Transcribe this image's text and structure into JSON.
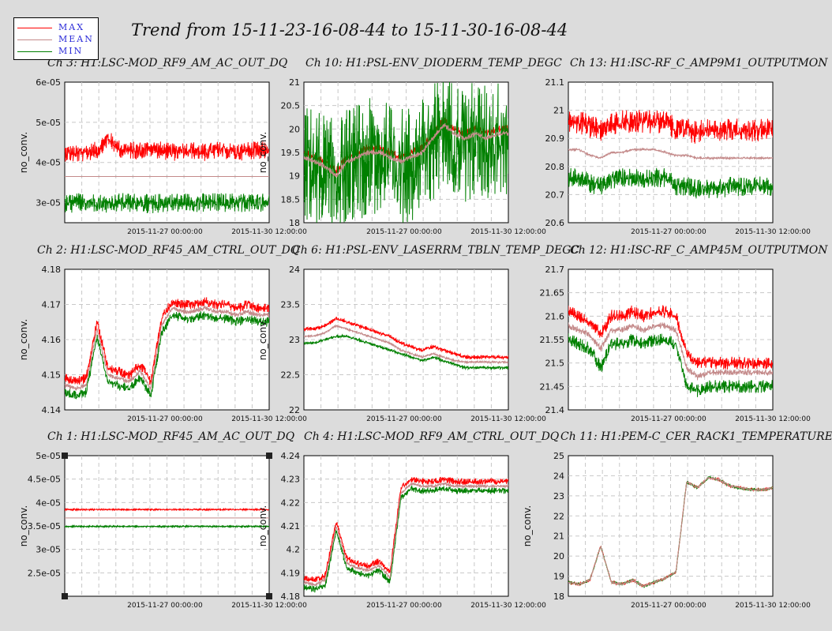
{
  "title": "Trend from 15-11-23-16-08-44 to 15-11-30-16-08-44",
  "legend": [
    {
      "label": "MAX",
      "color": "#ff0000"
    },
    {
      "label": "MEAN",
      "color": "#c48a8a"
    },
    {
      "label": "MIN",
      "color": "#008000"
    }
  ],
  "colors": {
    "max": "#ff0000",
    "mean": "#c48a8a",
    "min": "#008000",
    "grid": "#c8c8c8",
    "background": "#dcdcdc"
  },
  "chart_data": [
    {
      "type": "line",
      "title": "Ch 3: H1:LSC-MOD_RF9_AM_AC_OUT_DQ",
      "ylabel": "no_conv.",
      "yticks": [
        "6e-05",
        "5e-05",
        "4e-05",
        "3e-05"
      ],
      "ylim": [
        2.5e-05,
        6e-05
      ],
      "xticks": [
        "2015-11-27 00:00:00",
        "2015-11-30 12:00:00"
      ],
      "series": [
        {
          "name": "MAX",
          "values": [
            4.25e-05,
            4.2e-05,
            4.25e-05,
            4.3e-05,
            4.6e-05,
            4.35e-05,
            4.3e-05,
            4.3e-05,
            4.35e-05,
            4.3e-05,
            4.25e-05,
            4.3e-05,
            4.3e-05,
            4.25e-05,
            4.3e-05,
            4.3e-05,
            4.25e-05,
            4.3e-05,
            4.3e-05,
            4.3e-05
          ],
          "band": 3.2e-06
        },
        {
          "name": "MEAN",
          "values": [
            3.65e-05,
            3.65e-05,
            3.65e-05,
            3.65e-05,
            3.65e-05,
            3.65e-05,
            3.65e-05,
            3.65e-05,
            3.65e-05,
            3.65e-05,
            3.65e-05,
            3.65e-05,
            3.65e-05,
            3.65e-05,
            3.65e-05,
            3.65e-05,
            3.65e-05,
            3.65e-05,
            3.65e-05,
            3.65e-05
          ],
          "band": 0
        },
        {
          "name": "MIN",
          "values": [
            2.95e-05,
            3e-05,
            3e-05,
            3e-05,
            2.95e-05,
            3e-05,
            3e-05,
            3e-05,
            2.95e-05,
            3e-05,
            3e-05,
            3e-05,
            3e-05,
            3e-05,
            3e-05,
            3e-05,
            3e-05,
            3e-05,
            3e-05,
            3e-05
          ],
          "band": 3.5e-06
        }
      ]
    },
    {
      "type": "line",
      "title": "Ch 10: H1:PSL-ENV_DIODERM_TEMP_DEGC",
      "ylabel": "no_conv.",
      "yticks": [
        "21",
        "20.5",
        "20",
        "19.5",
        "19",
        "18.5",
        "18"
      ],
      "ylim": [
        18,
        21
      ],
      "xticks": [
        "2015-11-27 00:00:00",
        "2015-11-30 12:00:00"
      ],
      "series": [
        {
          "name": "MAX",
          "values": [
            19.5,
            19.4,
            19.3,
            19.1,
            19.4,
            19.5,
            19.6,
            19.6,
            19.5,
            19.4,
            19.5,
            19.6,
            19.9,
            20.2,
            20.0,
            19.9,
            20.0,
            19.9,
            20.0,
            20.0
          ],
          "band": 0.12
        },
        {
          "name": "MEAN",
          "values": [
            19.4,
            19.3,
            19.2,
            19.0,
            19.3,
            19.4,
            19.5,
            19.5,
            19.4,
            19.3,
            19.4,
            19.5,
            19.8,
            20.1,
            19.9,
            19.8,
            19.9,
            19.8,
            19.9,
            19.9
          ],
          "band": 0.08
        },
        {
          "name": "MIN",
          "values": [
            19.3,
            19.2,
            19.1,
            18.9,
            19.2,
            19.3,
            19.4,
            19.4,
            19.3,
            19.2,
            19.3,
            19.4,
            19.7,
            20.0,
            19.8,
            19.7,
            19.8,
            19.7,
            19.8,
            19.8
          ],
          "band": 1.8
        }
      ]
    },
    {
      "type": "line",
      "title": "Ch 13: H1:ISC-RF_C_AMP9M1_OUTPUTMON",
      "ylabel": "",
      "yticks": [
        "21.1",
        "21",
        "20.9",
        "20.8",
        "20.7",
        "20.6"
      ],
      "ylim": [
        20.6,
        21.1
      ],
      "xticks": [
        "2015-11-27 00:00:00",
        "2015-11-30 12:00:00"
      ],
      "series": [
        {
          "name": "MAX",
          "values": [
            20.96,
            20.96,
            20.94,
            20.93,
            20.95,
            20.96,
            20.96,
            20.96,
            20.96,
            20.96,
            20.93,
            20.93,
            20.92,
            20.93,
            20.93,
            20.93,
            20.93,
            20.93,
            20.93,
            20.93
          ],
          "band": 0.06
        },
        {
          "name": "MEAN",
          "values": [
            20.86,
            20.86,
            20.84,
            20.83,
            20.85,
            20.85,
            20.86,
            20.86,
            20.86,
            20.85,
            20.84,
            20.84,
            20.83,
            20.83,
            20.83,
            20.83,
            20.83,
            20.83,
            20.83,
            20.83
          ],
          "band": 0.005
        },
        {
          "name": "MIN",
          "values": [
            20.76,
            20.76,
            20.74,
            20.73,
            20.75,
            20.76,
            20.76,
            20.76,
            20.76,
            20.76,
            20.73,
            20.73,
            20.72,
            20.72,
            20.72,
            20.73,
            20.73,
            20.73,
            20.73,
            20.73
          ],
          "band": 0.05
        }
      ]
    },
    {
      "type": "line",
      "title": "Ch 2: H1:LSC-MOD_RF45_AM_CTRL_OUT_DQ",
      "ylabel": "no_conv.",
      "yticks": [
        "4.18",
        "4.17",
        "4.16",
        "4.15",
        "4.14"
      ],
      "ylim": [
        4.14,
        4.18
      ],
      "xticks": [
        "2015-11-27 00:00:00",
        "2015-11-30 12:00:00"
      ],
      "series": [
        {
          "name": "MAX",
          "values": [
            4.149,
            4.148,
            4.149,
            4.165,
            4.152,
            4.151,
            4.15,
            4.153,
            4.148,
            4.166,
            4.171,
            4.17,
            4.17,
            4.171,
            4.17,
            4.17,
            4.169,
            4.17,
            4.169,
            4.169
          ],
          "band": 0.002
        },
        {
          "name": "MEAN",
          "values": [
            4.147,
            4.146,
            4.147,
            4.163,
            4.15,
            4.149,
            4.148,
            4.151,
            4.146,
            4.164,
            4.169,
            4.168,
            4.168,
            4.169,
            4.168,
            4.168,
            4.167,
            4.168,
            4.167,
            4.167
          ],
          "band": 0.001
        },
        {
          "name": "MIN",
          "values": [
            4.145,
            4.144,
            4.145,
            4.161,
            4.148,
            4.147,
            4.146,
            4.149,
            4.144,
            4.162,
            4.167,
            4.166,
            4.166,
            4.167,
            4.166,
            4.166,
            4.165,
            4.166,
            4.165,
            4.165
          ],
          "band": 0.002
        }
      ]
    },
    {
      "type": "line",
      "title": "Ch 6: H1:PSL-ENV_LASERRM_TBLN_TEMP_DEGC",
      "ylabel": "no_conv.",
      "yticks": [
        "24",
        "23.5",
        "23",
        "22.5",
        "22"
      ],
      "ylim": [
        22,
        24
      ],
      "xticks": [
        "2015-11-27 00:00:00",
        "2015-11-30 12:00:00"
      ],
      "series": [
        {
          "name": "MAX",
          "values": [
            23.15,
            23.15,
            23.2,
            23.3,
            23.25,
            23.2,
            23.15,
            23.1,
            23.05,
            22.95,
            22.9,
            22.85,
            22.9,
            22.85,
            22.8,
            22.75,
            22.75,
            22.75,
            22.75,
            22.75
          ],
          "band": 0.04
        },
        {
          "name": "MEAN",
          "values": [
            23.05,
            23.05,
            23.1,
            23.2,
            23.15,
            23.1,
            23.05,
            23.0,
            22.95,
            22.85,
            22.8,
            22.75,
            22.8,
            22.75,
            22.7,
            22.68,
            22.68,
            22.68,
            22.68,
            22.68
          ],
          "band": 0.02
        },
        {
          "name": "MIN",
          "values": [
            22.95,
            22.95,
            23.0,
            23.05,
            23.05,
            23.0,
            22.95,
            22.9,
            22.85,
            22.8,
            22.75,
            22.7,
            22.75,
            22.7,
            22.65,
            22.6,
            22.6,
            22.6,
            22.6,
            22.6
          ],
          "band": 0.03
        }
      ]
    },
    {
      "type": "line",
      "title": "Ch 12: H1:ISC-RF_C_AMP45M_OUTPUTMON",
      "ylabel": "",
      "yticks": [
        "21.7",
        "21.65",
        "21.6",
        "21.55",
        "21.5",
        "21.45",
        "21.4"
      ],
      "ylim": [
        21.4,
        21.7
      ],
      "xticks": [
        "2015-11-27 00:00:00",
        "2015-11-30 12:00:00"
      ],
      "series": [
        {
          "name": "MAX",
          "values": [
            21.61,
            21.6,
            21.59,
            21.56,
            21.6,
            21.6,
            21.61,
            21.6,
            21.61,
            21.61,
            21.6,
            21.52,
            21.5,
            21.5,
            21.5,
            21.5,
            21.5,
            21.5,
            21.5,
            21.5
          ],
          "band": 0.02
        },
        {
          "name": "MEAN",
          "values": [
            21.58,
            21.57,
            21.56,
            21.53,
            21.57,
            21.57,
            21.58,
            21.57,
            21.58,
            21.58,
            21.57,
            21.49,
            21.47,
            21.48,
            21.48,
            21.48,
            21.48,
            21.48,
            21.48,
            21.48
          ],
          "band": 0.01
        },
        {
          "name": "MIN",
          "values": [
            21.55,
            21.54,
            21.53,
            21.49,
            21.54,
            21.54,
            21.55,
            21.54,
            21.55,
            21.55,
            21.54,
            21.45,
            21.44,
            21.45,
            21.45,
            21.45,
            21.45,
            21.45,
            21.45,
            21.45
          ],
          "band": 0.02
        }
      ]
    },
    {
      "type": "line",
      "title": "Ch 1: H1:LSC-MOD_RF45_AM_AC_OUT_DQ",
      "ylabel": "no_conv.",
      "yticks": [
        "5e-05",
        "4.5e-05",
        "4e-05",
        "3.5e-05",
        "3e-05",
        "2.5e-05"
      ],
      "ylim": [
        2e-05,
        5e-05
      ],
      "xticks": [
        "2015-11-27 00:00:00",
        "2015-11-30 12:00:00"
      ],
      "series": [
        {
          "name": "MAX",
          "values": [
            3.85e-05,
            3.85e-05,
            3.85e-05,
            3.85e-05,
            3.85e-05,
            3.85e-05,
            3.85e-05,
            3.85e-05,
            3.85e-05,
            3.85e-05,
            3.85e-05,
            3.85e-05,
            3.85e-05,
            3.85e-05,
            3.85e-05,
            3.85e-05,
            3.85e-05,
            3.85e-05,
            3.85e-05,
            3.85e-05
          ],
          "band": 2e-07
        },
        {
          "name": "MEAN",
          "values": [
            3.67e-05,
            3.67e-05,
            3.67e-05,
            3.67e-05,
            3.67e-05,
            3.67e-05,
            3.67e-05,
            3.67e-05,
            3.67e-05,
            3.67e-05,
            3.67e-05,
            3.67e-05,
            3.67e-05,
            3.67e-05,
            3.67e-05,
            3.67e-05,
            3.67e-05,
            3.67e-05,
            3.67e-05,
            3.67e-05
          ],
          "band": 0
        },
        {
          "name": "MIN",
          "values": [
            3.49e-05,
            3.49e-05,
            3.49e-05,
            3.49e-05,
            3.49e-05,
            3.49e-05,
            3.49e-05,
            3.49e-05,
            3.49e-05,
            3.49e-05,
            3.49e-05,
            3.49e-05,
            3.49e-05,
            3.49e-05,
            3.49e-05,
            3.49e-05,
            3.49e-05,
            3.49e-05,
            3.49e-05,
            3.49e-05
          ],
          "band": 2e-07
        }
      ]
    },
    {
      "type": "line",
      "title": "Ch 4: H1:LSC-MOD_RF9_AM_CTRL_OUT_DQ",
      "ylabel": "no_conv.",
      "yticks": [
        "4.24",
        "4.23",
        "4.22",
        "4.21",
        "4.2",
        "4.19",
        "4.18"
      ],
      "ylim": [
        4.18,
        4.24
      ],
      "xticks": [
        "2015-11-27 00:00:00",
        "2015-11-30 12:00:00"
      ],
      "series": [
        {
          "name": "MAX",
          "values": [
            4.188,
            4.187,
            4.189,
            4.212,
            4.196,
            4.194,
            4.193,
            4.195,
            4.19,
            4.226,
            4.23,
            4.229,
            4.229,
            4.23,
            4.229,
            4.229,
            4.229,
            4.229,
            4.229,
            4.229
          ],
          "band": 0.002
        },
        {
          "name": "MEAN",
          "values": [
            4.186,
            4.185,
            4.187,
            4.21,
            4.194,
            4.192,
            4.191,
            4.193,
            4.188,
            4.224,
            4.228,
            4.227,
            4.227,
            4.228,
            4.227,
            4.227,
            4.227,
            4.227,
            4.227,
            4.227
          ],
          "band": 0.001
        },
        {
          "name": "MIN",
          "values": [
            4.184,
            4.183,
            4.185,
            4.208,
            4.192,
            4.19,
            4.189,
            4.191,
            4.186,
            4.222,
            4.226,
            4.225,
            4.225,
            4.226,
            4.225,
            4.225,
            4.225,
            4.225,
            4.225,
            4.225
          ],
          "band": 0.002
        }
      ]
    },
    {
      "type": "line",
      "title": "Ch 11: H1:PEM-C_CER_RACK1_TEMPERATURE",
      "ylabel": "no_conv.",
      "yticks": [
        "25",
        "24",
        "23",
        "22",
        "21",
        "20",
        "19",
        "18"
      ],
      "ylim": [
        18,
        25
      ],
      "xticks": [
        "2015-11-27 00:00:00",
        "2015-11-30 12:00:00"
      ],
      "series": [
        {
          "name": "MAX",
          "values": [
            18.7,
            18.6,
            18.8,
            20.5,
            18.7,
            18.6,
            18.8,
            18.5,
            18.7,
            18.9,
            19.2,
            23.7,
            23.4,
            23.9,
            23.8,
            23.5,
            23.4,
            23.3,
            23.3,
            23.4
          ],
          "band": 0.1
        },
        {
          "name": "MEAN",
          "values": [
            18.7,
            18.6,
            18.8,
            20.5,
            18.7,
            18.6,
            18.8,
            18.5,
            18.7,
            18.9,
            19.2,
            23.7,
            23.4,
            23.9,
            23.8,
            23.5,
            23.4,
            23.3,
            23.3,
            23.4
          ],
          "band": 0.05
        },
        {
          "name": "MIN",
          "values": [
            18.7,
            18.6,
            18.8,
            20.5,
            18.7,
            18.6,
            18.8,
            18.5,
            18.7,
            18.9,
            19.2,
            23.7,
            23.4,
            23.9,
            23.8,
            23.5,
            23.4,
            23.3,
            23.3,
            23.4
          ],
          "band": 0.1
        }
      ]
    }
  ]
}
